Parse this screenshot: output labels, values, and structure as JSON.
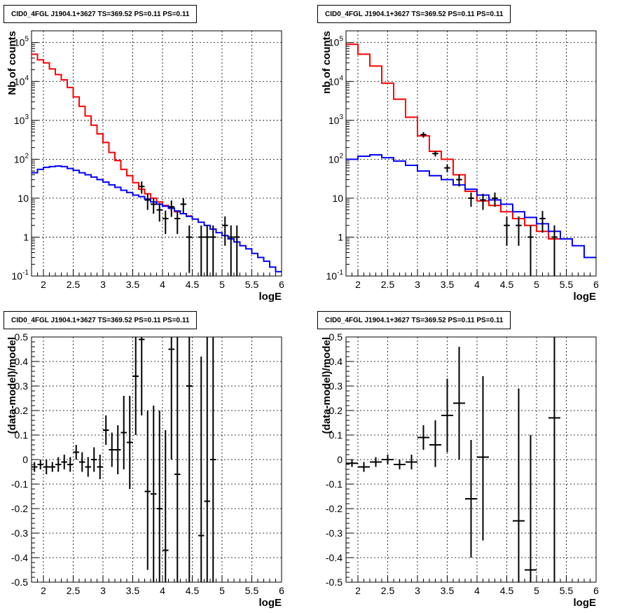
{
  "colors": {
    "data": "#000000",
    "total": "#ff0000",
    "source": "#0000ff",
    "grid": "#000000"
  },
  "chart_data": [
    {
      "id": "counts-left",
      "type": "line",
      "title": "CID0_4FGL J1904.1+3627 TS=369.52 PS=0.11 PS=0.11",
      "xlabel": "logE",
      "ylabel": "Nb of counts",
      "xlim": [
        1.8,
        6.0
      ],
      "ylim": [
        0.1,
        200000
      ],
      "yscale": "log",
      "grid": true,
      "xticks": [
        "2",
        "2.5",
        "3",
        "3.5",
        "4",
        "4.5",
        "5",
        "5.5",
        "6"
      ],
      "yticks": [
        {
          "v": 0.1,
          "label": "10",
          "exp": "-1"
        },
        {
          "v": 1,
          "label": "1",
          "exp": ""
        },
        {
          "v": 10,
          "label": "10",
          "exp": ""
        },
        {
          "v": 100,
          "label": "10",
          "exp": "2"
        },
        {
          "v": 1000,
          "label": "10",
          "exp": "3"
        },
        {
          "v": 10000,
          "label": "10",
          "exp": "4"
        },
        {
          "v": 100000,
          "label": "10",
          "exp": "5"
        }
      ],
      "series": [
        {
          "name": "total model",
          "kind": "step",
          "edges": [
            1.8,
            1.9,
            2.0,
            2.1,
            2.2,
            2.3,
            2.4,
            2.5,
            2.6,
            2.7,
            2.8,
            2.9,
            3.0,
            3.1,
            3.2,
            3.3,
            3.4,
            3.5,
            3.6,
            3.7,
            3.8,
            3.9,
            4.0,
            4.1,
            4.2,
            4.3,
            4.4,
            4.5
          ],
          "values": [
            50000,
            36000,
            30000,
            21000,
            15000,
            11000,
            7000,
            4000,
            2300,
            1300,
            750,
            450,
            270,
            150,
            93,
            55,
            38,
            25,
            17,
            13,
            10,
            8,
            6.5,
            5.5,
            4.5,
            4,
            3.5
          ]
        },
        {
          "name": "source model",
          "kind": "step",
          "edges": [
            1.8,
            1.9,
            2.0,
            2.1,
            2.2,
            2.3,
            2.4,
            2.5,
            2.6,
            2.7,
            2.8,
            2.9,
            3.0,
            3.1,
            3.2,
            3.3,
            3.4,
            3.5,
            3.6,
            3.7,
            3.8,
            3.9,
            4.0,
            4.1,
            4.2,
            4.3,
            4.4,
            4.5,
            4.6,
            4.7,
            4.8,
            4.9,
            5.0,
            5.1,
            5.2,
            5.3,
            5.4,
            5.5,
            5.6,
            5.7,
            5.8,
            5.9,
            6.0
          ],
          "values": [
            45,
            55,
            62,
            65,
            67,
            65,
            58,
            52,
            45,
            40,
            35,
            30,
            26,
            22,
            19,
            16,
            14,
            12,
            11,
            9.5,
            8,
            7,
            6.2,
            5.5,
            4.7,
            4,
            3.4,
            2.9,
            2.4,
            2,
            1.6,
            1.3,
            1.1,
            0.9,
            0.75,
            0.6,
            0.5,
            0.38,
            0.3,
            0.24,
            0.17,
            0.13
          ]
        }
      ],
      "points": [
        {
          "x": 3.65,
          "y": 20,
          "lo": 13,
          "hi": 27
        },
        {
          "x": 3.75,
          "y": 9,
          "lo": 5,
          "hi": 13
        },
        {
          "x": 3.85,
          "y": 7,
          "lo": 4,
          "hi": 10
        },
        {
          "x": 3.95,
          "y": 5,
          "lo": 2.5,
          "hi": 7.5
        },
        {
          "x": 4.05,
          "y": 3,
          "lo": 1.2,
          "hi": 4.8
        },
        {
          "x": 4.15,
          "y": 6,
          "lo": 3.3,
          "hi": 8.7
        },
        {
          "x": 4.25,
          "y": 3,
          "lo": 1.2,
          "hi": 4.8
        },
        {
          "x": 4.35,
          "y": 7,
          "lo": 4,
          "hi": 10
        },
        {
          "x": 4.45,
          "y": 1,
          "lo": 0.12,
          "hi": 2
        },
        {
          "x": 4.65,
          "y": 1,
          "lo": 0.1,
          "hi": 2
        },
        {
          "x": 4.75,
          "y": 1,
          "lo": 0.1,
          "hi": 2
        },
        {
          "x": 4.85,
          "y": 1,
          "lo": 0.1,
          "hi": 2
        },
        {
          "x": 5.05,
          "y": 2,
          "lo": 0.6,
          "hi": 3.4
        },
        {
          "x": 5.15,
          "y": 1,
          "lo": 0.1,
          "hi": 2
        },
        {
          "x": 5.25,
          "y": 1,
          "lo": 0.1,
          "hi": 2
        }
      ]
    },
    {
      "id": "counts-right",
      "type": "line",
      "title": "CID0_4FGL J1904.1+3627 TS=369.52 PS=0.11 PS=0.11",
      "xlabel": "logE",
      "ylabel": "nb of counts",
      "xlim": [
        1.8,
        6.0
      ],
      "ylim": [
        0.1,
        200000
      ],
      "yscale": "log",
      "grid": true,
      "xticks": [
        "2",
        "2.5",
        "3",
        "3.5",
        "4",
        "4.5",
        "5",
        "5.5",
        "6"
      ],
      "yticks": [
        {
          "v": 0.1,
          "label": "10",
          "exp": "-1"
        },
        {
          "v": 1,
          "label": "1",
          "exp": ""
        },
        {
          "v": 10,
          "label": "10",
          "exp": ""
        },
        {
          "v": 100,
          "label": "10",
          "exp": "2"
        },
        {
          "v": 1000,
          "label": "10",
          "exp": "3"
        },
        {
          "v": 10000,
          "label": "10",
          "exp": "4"
        },
        {
          "v": 100000,
          "label": "10",
          "exp": "5"
        }
      ],
      "series": [
        {
          "name": "total model",
          "kind": "step",
          "edges": [
            1.8,
            2.0,
            2.2,
            2.4,
            2.6,
            2.8,
            3.0,
            3.2,
            3.4,
            3.6,
            3.8,
            4.0,
            4.2,
            4.4,
            4.6,
            4.8,
            5.0,
            5.2,
            5.4
          ],
          "values": [
            90000,
            50000,
            25000,
            9000,
            3500,
            1200,
            400,
            160,
            100,
            40,
            15,
            8.5,
            6.5,
            4.5,
            3,
            2,
            1.4,
            0.9
          ]
        },
        {
          "name": "source model",
          "kind": "step",
          "edges": [
            1.8,
            2.0,
            2.2,
            2.4,
            2.6,
            2.8,
            3.0,
            3.2,
            3.4,
            3.6,
            3.8,
            4.0,
            4.2,
            4.4,
            4.6,
            4.8,
            5.0,
            5.2,
            5.4,
            5.6,
            5.8,
            6.0
          ],
          "values": [
            100,
            120,
            130,
            110,
            90,
            70,
            50,
            38,
            30,
            22,
            17,
            12,
            9,
            7,
            4.5,
            3.2,
            2.2,
            1.4,
            0.9,
            0.6,
            0.3
          ]
        }
      ],
      "points": [
        {
          "x": 3.1,
          "y": 430,
          "lo": 360,
          "hi": 500
        },
        {
          "x": 3.3,
          "y": 140,
          "lo": 118,
          "hi": 162
        },
        {
          "x": 3.5,
          "y": 60,
          "lo": 46,
          "hi": 74
        },
        {
          "x": 3.7,
          "y": 30,
          "lo": 20,
          "hi": 40
        },
        {
          "x": 3.9,
          "y": 10,
          "lo": 6,
          "hi": 14
        },
        {
          "x": 4.1,
          "y": 9,
          "lo": 5,
          "hi": 13
        },
        {
          "x": 4.3,
          "y": 10,
          "lo": 6,
          "hi": 14
        },
        {
          "x": 4.5,
          "y": 2,
          "lo": 0.6,
          "hi": 3.4
        },
        {
          "x": 4.7,
          "y": 2,
          "lo": 0.6,
          "hi": 3.4
        },
        {
          "x": 4.9,
          "y": 1,
          "lo": 0.1,
          "hi": 2
        },
        {
          "x": 5.1,
          "y": 3,
          "lo": 1.3,
          "hi": 4.7
        },
        {
          "x": 5.3,
          "y": 1,
          "lo": 0.1,
          "hi": 2
        }
      ]
    },
    {
      "id": "residuals-left",
      "type": "scatter",
      "title": "CID0_4FGL J1904.1+3627 TS=369.52 PS=0.11 PS=0.11",
      "xlabel": "logE",
      "ylabel": "(data-model)/model",
      "xlim": [
        1.8,
        6.0
      ],
      "ylim": [
        -0.5,
        0.5
      ],
      "yscale": "linear",
      "grid": true,
      "xticks": [
        "2",
        "2.5",
        "3",
        "3.5",
        "4",
        "4.5",
        "5",
        "5.5",
        "6"
      ],
      "yticks": [
        "-0.5",
        "-0.4",
        "-0.3",
        "-0.2",
        "-0.1",
        "0",
        "0.1",
        "0.2",
        "0.3",
        "0.4",
        "0.5"
      ],
      "xw": 0.05,
      "points": [
        {
          "x": 1.85,
          "y": -0.03,
          "lo": -0.05,
          "hi": -0.01
        },
        {
          "x": 1.95,
          "y": -0.02,
          "lo": -0.04,
          "hi": 0.0
        },
        {
          "x": 2.05,
          "y": -0.03,
          "lo": -0.06,
          "hi": 0.0
        },
        {
          "x": 2.15,
          "y": -0.03,
          "lo": -0.05,
          "hi": -0.01
        },
        {
          "x": 2.25,
          "y": -0.02,
          "lo": -0.05,
          "hi": 0.01
        },
        {
          "x": 2.35,
          "y": -0.01,
          "lo": -0.04,
          "hi": 0.02
        },
        {
          "x": 2.45,
          "y": -0.02,
          "lo": -0.05,
          "hi": 0.01
        },
        {
          "x": 2.55,
          "y": 0.03,
          "lo": 0.0,
          "hi": 0.06
        },
        {
          "x": 2.65,
          "y": -0.01,
          "lo": -0.05,
          "hi": 0.03
        },
        {
          "x": 2.75,
          "y": -0.03,
          "lo": -0.07,
          "hi": 0.01
        },
        {
          "x": 2.85,
          "y": 0.0,
          "lo": -0.05,
          "hi": 0.05
        },
        {
          "x": 2.95,
          "y": -0.03,
          "lo": -0.08,
          "hi": 0.02
        },
        {
          "x": 3.05,
          "y": 0.12,
          "lo": 0.06,
          "hi": 0.18
        },
        {
          "x": 3.15,
          "y": 0.04,
          "lo": -0.03,
          "hi": 0.11
        },
        {
          "x": 3.25,
          "y": 0.04,
          "lo": -0.06,
          "hi": 0.14
        },
        {
          "x": 3.35,
          "y": 0.11,
          "lo": -0.04,
          "hi": 0.26
        },
        {
          "x": 3.45,
          "y": 0.07,
          "lo": -0.12,
          "hi": 0.26
        },
        {
          "x": 3.55,
          "y": 0.34,
          "lo": 0.1,
          "hi": 0.5
        },
        {
          "x": 3.65,
          "y": 0.49,
          "lo": 0.18,
          "hi": 0.5
        },
        {
          "x": 3.75,
          "y": -0.13,
          "lo": -0.45,
          "hi": 0.2
        },
        {
          "x": 3.85,
          "y": -0.14,
          "lo": -0.5,
          "hi": 0.22
        },
        {
          "x": 3.95,
          "y": -0.2,
          "lo": -0.5,
          "hi": 0.2
        },
        {
          "x": 4.05,
          "y": -0.37,
          "lo": -0.5,
          "hi": 0.12
        },
        {
          "x": 4.15,
          "y": 0.45,
          "lo": 0.0,
          "hi": 0.5
        },
        {
          "x": 4.25,
          "y": -0.06,
          "lo": -0.5,
          "hi": 0.5
        },
        {
          "x": 4.45,
          "y": 0.3,
          "lo": -0.5,
          "hi": 0.5
        },
        {
          "x": 4.65,
          "y": -0.31,
          "lo": -0.5,
          "hi": 0.42
        },
        {
          "x": 4.75,
          "y": -0.17,
          "lo": -0.5,
          "hi": 0.5
        },
        {
          "x": 4.85,
          "y": 0.0,
          "lo": -0.5,
          "hi": 0.5
        }
      ]
    },
    {
      "id": "residuals-right",
      "type": "scatter",
      "title": "CID0_4FGL J1904.1+3627 TS=369.52 PS=0.11 PS=0.11",
      "xlabel": "logE",
      "ylabel": "(data-model)/model",
      "xlim": [
        1.8,
        6.0
      ],
      "ylim": [
        -0.5,
        0.5
      ],
      "yscale": "linear",
      "grid": true,
      "xticks": [
        "2",
        "2.5",
        "3",
        "3.5",
        "4",
        "4.5",
        "5",
        "5.5",
        "6"
      ],
      "yticks": [
        "-0.5",
        "-0.4",
        "-0.3",
        "-0.2",
        "-0.1",
        "0",
        "0.1",
        "0.2",
        "0.3",
        "0.4",
        "0.5"
      ],
      "xw": 0.1,
      "points": [
        {
          "x": 1.9,
          "y": -0.015,
          "lo": -0.03,
          "hi": 0.0
        },
        {
          "x": 2.1,
          "y": -0.03,
          "lo": -0.05,
          "hi": -0.01
        },
        {
          "x": 2.3,
          "y": -0.01,
          "lo": -0.03,
          "hi": 0.01
        },
        {
          "x": 2.5,
          "y": 0.0,
          "lo": -0.02,
          "hi": 0.02
        },
        {
          "x": 2.7,
          "y": -0.02,
          "lo": -0.04,
          "hi": 0.0
        },
        {
          "x": 2.9,
          "y": -0.01,
          "lo": -0.04,
          "hi": 0.02
        },
        {
          "x": 3.1,
          "y": 0.09,
          "lo": 0.04,
          "hi": 0.14
        },
        {
          "x": 3.3,
          "y": 0.06,
          "lo": -0.03,
          "hi": 0.16
        },
        {
          "x": 3.5,
          "y": 0.18,
          "lo": 0.03,
          "hi": 0.33
        },
        {
          "x": 3.7,
          "y": 0.23,
          "lo": 0.0,
          "hi": 0.46
        },
        {
          "x": 3.9,
          "y": -0.16,
          "lo": -0.4,
          "hi": 0.08
        },
        {
          "x": 4.1,
          "y": 0.01,
          "lo": -0.33,
          "hi": 0.34
        },
        {
          "x": 4.7,
          "y": -0.25,
          "lo": -0.5,
          "hi": 0.29
        },
        {
          "x": 4.9,
          "y": -0.45,
          "lo": -0.5,
          "hi": 0.1
        },
        {
          "x": 5.3,
          "y": 0.17,
          "lo": -0.5,
          "hi": 0.5
        }
      ]
    }
  ]
}
